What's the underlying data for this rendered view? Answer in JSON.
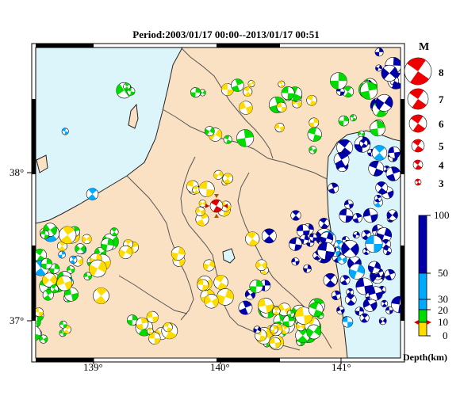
{
  "title": "Period:2003/01/17 00:00--2013/01/17 00:51",
  "map": {
    "lon_range": [
      138.5,
      141.5
    ],
    "lat_range": [
      36.8,
      38.45
    ],
    "x_ticks": [
      "139°",
      "140°",
      "141°"
    ],
    "y_ticks": [
      "38°",
      "37°"
    ],
    "colors": {
      "sea": "#dcf5fa",
      "land": "#fae1c3",
      "border": "#555555",
      "coast": "#222222",
      "lake": "#dcf5fa"
    }
  },
  "magnitude_legend": {
    "title": "M",
    "items": [
      "8",
      "7",
      "6",
      "5",
      "4",
      "3"
    ]
  },
  "depth_legend": {
    "tick_labels": [
      "100",
      "50",
      "30",
      "20",
      "10",
      "0"
    ],
    "unit_label": "Depth(km)",
    "colors": {
      "0-10": "#ffdc00",
      "10-20": "#00dc00",
      "20-30": "#00aaff",
      "30-50": "#00aaff",
      "50-100": "#0000aa"
    }
  },
  "chart_data": {
    "type": "scatter",
    "title": "Period:2003/01/17 00:00--2013/01/17 00:51",
    "xlabel": "",
    "ylabel": "",
    "xlim": [
      138.5,
      141.5
    ],
    "ylim": [
      36.8,
      38.45
    ],
    "main_event": {
      "lon": 140.0,
      "lat": 37.75,
      "depth_km": 10
    }
  }
}
